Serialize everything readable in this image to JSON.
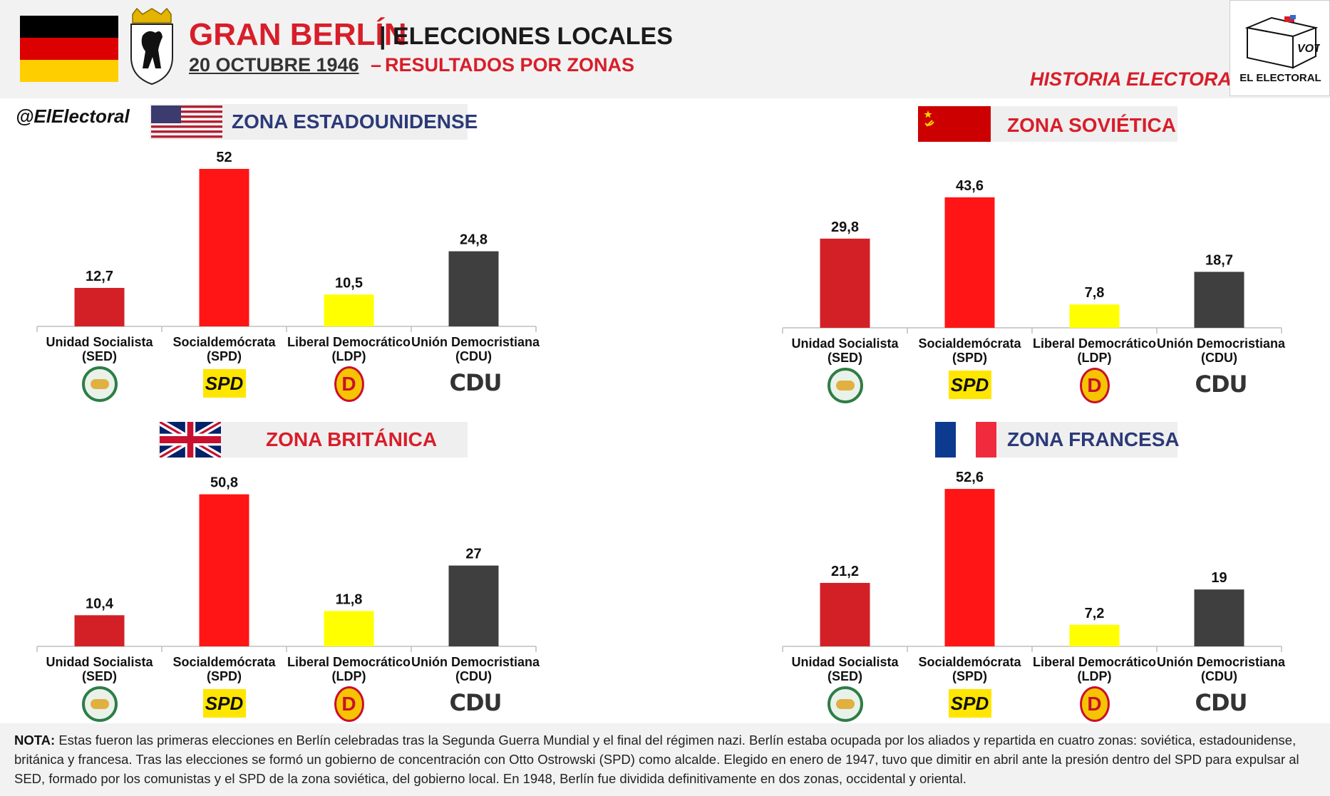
{
  "header": {
    "title": "GRAN BERLÍN",
    "title_suffix": "| ELECCIONES LOCALES",
    "date": "20 OCTUBRE 1946",
    "dash": "–",
    "subtitle": "RESULTADOS POR ZONAS",
    "series_name": "HISTORIA ELECTORAL",
    "handle": "@ElElectoral",
    "brand": "EL ELECTORAL",
    "vote_box_text": "VOTE"
  },
  "colors": {
    "sed": "#d32027",
    "spd": "#ff1515",
    "ldp": "#ffff00",
    "cdu": "#3f3f3f",
    "accent_red": "#d81e2a",
    "zone_blue": "#2c3a78"
  },
  "party_labels": [
    {
      "name": "Unidad Socialista",
      "abbr": "(SED)",
      "logo": "sed-logo"
    },
    {
      "name": "Socialdemócrata",
      "abbr": "(SPD)",
      "logo": "spd-logo"
    },
    {
      "name": "Liberal Democrático",
      "abbr": "(LDP)",
      "logo": "ldp-logo"
    },
    {
      "name": "Unión Democristiana",
      "abbr": "(CDU)",
      "logo": "cdu-logo"
    }
  ],
  "logos": {
    "spd": "SPD",
    "ldp": "D",
    "cdu": "CDU"
  },
  "chart_data": [
    {
      "type": "bar",
      "title": "ZONA ESTADOUNIDENSE",
      "flag": "usa-flag",
      "categories": [
        "Unidad Socialista (SED)",
        "Socialdemócrata (SPD)",
        "Liberal Democrático (LDP)",
        "Unión Democristiana (CDU)"
      ],
      "values": [
        12.7,
        52,
        10.5,
        24.8
      ],
      "value_labels": [
        "12,7",
        "52",
        "10,5",
        "24,8"
      ],
      "colors": [
        "#d32027",
        "#ff1515",
        "#ffff00",
        "#3f3f3f"
      ]
    },
    {
      "type": "bar",
      "title": "ZONA SOVIÉTICA",
      "flag": "soviet-flag",
      "categories": [
        "Unidad Socialista (SED)",
        "Socialdemócrata (SPD)",
        "Liberal Democrático (LDP)",
        "Unión Democristiana (CDU)"
      ],
      "values": [
        29.8,
        43.6,
        7.8,
        18.7
      ],
      "value_labels": [
        "29,8",
        "43,6",
        "7,8",
        "18,7"
      ],
      "colors": [
        "#d32027",
        "#ff1515",
        "#ffff00",
        "#3f3f3f"
      ]
    },
    {
      "type": "bar",
      "title": "ZONA BRITÁNICA",
      "flag": "uk-flag",
      "categories": [
        "Unidad Socialista (SED)",
        "Socialdemócrata (SPD)",
        "Liberal Democrático (LDP)",
        "Unión Democristiana (CDU)"
      ],
      "values": [
        10.4,
        50.8,
        11.8,
        27
      ],
      "value_labels": [
        "10,4",
        "50,8",
        "11,8",
        "27"
      ],
      "colors": [
        "#d32027",
        "#ff1515",
        "#ffff00",
        "#3f3f3f"
      ]
    },
    {
      "type": "bar",
      "title": "ZONA FRANCESA",
      "flag": "france-flag",
      "categories": [
        "Unidad Socialista (SED)",
        "Socialdemócrata (SPD)",
        "Liberal Democrático (LDP)",
        "Unión Democristiana (CDU)"
      ],
      "values": [
        21.2,
        52.6,
        7.2,
        19
      ],
      "value_labels": [
        "21,2",
        "52,6",
        "7,2",
        "19"
      ],
      "colors": [
        "#d32027",
        "#ff1515",
        "#ffff00",
        "#3f3f3f"
      ]
    }
  ],
  "note": {
    "label": "NOTA:",
    "text": "Estas fueron las primeras elecciones en Berlín celebradas tras la Segunda Guerra Mundial y el final del régimen nazi. Berlín estaba ocupada por los aliados y repartida en cuatro zonas: soviética, estadounidense, británica y francesa. Tras las elecciones se formó un gobierno de concentración con Otto Ostrowski (SPD) como alcalde. Elegido en enero de 1947, tuvo que dimitir en abril ante la presión dentro del SPD para expulsar al SED, formado por los comunistas y el SPD de la zona soviética, del gobierno local. En 1948, Berlín fue dividida definitivamente en dos zonas, occidental y oriental."
  }
}
